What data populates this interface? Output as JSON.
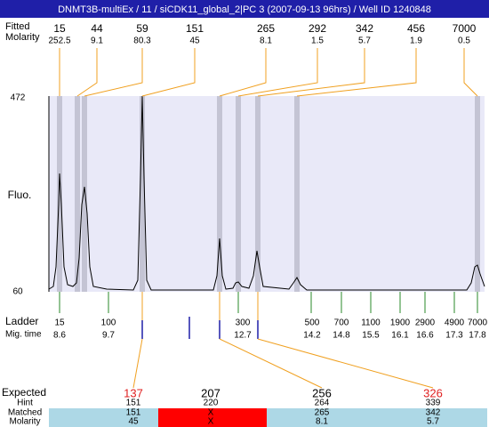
{
  "title": "DNMT3B-multiEx / 11 / siCDK11_global_2|PC 3 (2007-09-13 96hrs) / Well ID 1240848",
  "peak_rows": [
    "Fitted",
    "Molarity"
  ],
  "peaks": [
    {
      "size": 15,
      "molarity": 252.5
    },
    {
      "size": 44,
      "molarity": 9.1
    },
    {
      "size": 59,
      "molarity": 80.3
    },
    {
      "size": 151,
      "molarity": 45
    },
    {
      "size": 265,
      "molarity": 8.1
    },
    {
      "size": 292,
      "molarity": 1.5
    },
    {
      "size": 342,
      "molarity": 5.7
    },
    {
      "size": 456,
      "molarity": 1.9
    },
    {
      "size": 7000,
      "molarity": 0.5
    }
  ],
  "y_axis": {
    "label": "Fluo.",
    "top": 472,
    "bottom": 60
  },
  "ladder": {
    "row_labels": [
      "Ladder",
      "Mig. time"
    ],
    "items": [
      {
        "size": 15,
        "time": 8.6
      },
      {
        "size": 100,
        "time": 9.7
      },
      {
        "size": 300,
        "time": 12.7
      },
      {
        "size": 500,
        "time": 14.2
      },
      {
        "size": 700,
        "time": 14.8
      },
      {
        "size": 1100,
        "time": 15.5
      },
      {
        "size": 1900,
        "time": 16.1
      },
      {
        "size": 2900,
        "time": 16.6
      },
      {
        "size": 4900,
        "time": 17.3
      },
      {
        "size": 7000,
        "time": 17.8
      }
    ]
  },
  "table": {
    "row_labels": [
      "Expected",
      "Hint",
      "Matched",
      "Molarity"
    ],
    "columns": [
      {
        "expected": 137,
        "hint": 151,
        "matched": 151,
        "molarity": 45
      },
      {
        "expected": 207,
        "hint": 220,
        "matched": "X",
        "molarity": "X"
      },
      {
        "expected": 256,
        "hint": 264,
        "matched": 265,
        "molarity": 8.1
      },
      {
        "expected": 326,
        "hint": 339,
        "matched": 342,
        "molarity": 5.7
      }
    ]
  }
}
